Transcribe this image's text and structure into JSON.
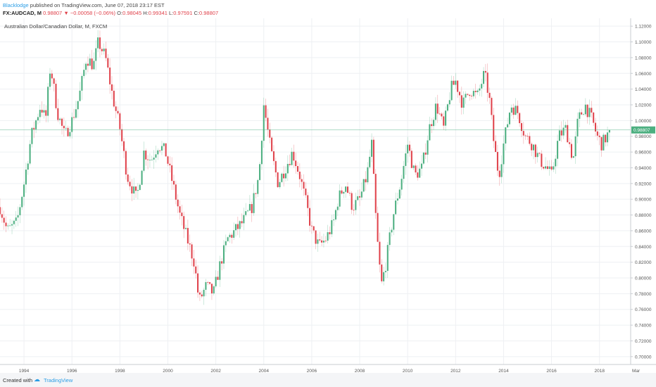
{
  "header": {
    "author": "Blacklodge",
    "published": "published on TradingView.com, June 07, 2018 23:17 EST",
    "symbol": "FX:AUDCAD, M",
    "last": "0.98807",
    "change": "−0.00058 (−0.06%)",
    "o_label": "O:",
    "o_value": "0.98045",
    "h_label": "H:",
    "h_value": "0.99341",
    "l_label": "L:",
    "l_value": "0.97591",
    "c_label": "C:",
    "c_value": "0.98807"
  },
  "footer": {
    "created_with": "Created with",
    "brand": "TradingView"
  },
  "colors": {
    "up": "#4caf80",
    "down": "#e0424b",
    "grid": "#eef0f3",
    "price_line": "#4caf80",
    "axis_text": "#555555"
  },
  "icons": {
    "change_arrow": "down-triangle-icon",
    "brand_logo": "tradingview-cloud-icon"
  },
  "chart_data": {
    "type": "candlestick",
    "title": "Australian Dollar/Canadian Dollar, M, FXCM",
    "ylim": [
      0.69,
      1.13
    ],
    "y_ticks": [
      "1.12000",
      "1.10000",
      "1.08000",
      "1.06000",
      "1.04000",
      "1.02000",
      "1.00000",
      "0.98000",
      "0.96000",
      "0.94000",
      "0.92000",
      "0.90000",
      "0.88000",
      "0.86000",
      "0.84000",
      "0.82000",
      "0.80000",
      "0.78000",
      "0.76000",
      "0.74000",
      "0.72000",
      "0.70000"
    ],
    "x_ticks": [
      "1994",
      "1996",
      "1998",
      "2000",
      "2002",
      "2004",
      "2006",
      "2008",
      "2010",
      "2012",
      "2014",
      "2016",
      "2018",
      "Mar"
    ],
    "x_range": [
      1993.0,
      2019.3
    ],
    "last_price": 0.98807,
    "last_price_label": "0.98807",
    "grid": true,
    "close_path": [
      [
        1993.0,
        0.89
      ],
      [
        1993.3,
        0.86
      ],
      [
        1993.7,
        0.87
      ],
      [
        1994.0,
        0.92
      ],
      [
        1994.3,
        0.98
      ],
      [
        1994.7,
        1.02
      ],
      [
        1994.9,
        1.0
      ],
      [
        1995.1,
        1.07
      ],
      [
        1995.4,
        1.01
      ],
      [
        1995.7,
        0.98
      ],
      [
        1996.0,
        1.0
      ],
      [
        1996.3,
        1.03
      ],
      [
        1996.6,
        1.08
      ],
      [
        1996.9,
        1.07
      ],
      [
        1997.1,
        1.1
      ],
      [
        1997.4,
        1.08
      ],
      [
        1997.7,
        1.03
      ],
      [
        1998.0,
        0.99
      ],
      [
        1998.3,
        0.93
      ],
      [
        1998.7,
        0.9
      ],
      [
        1999.0,
        0.96
      ],
      [
        1999.3,
        0.95
      ],
      [
        1999.6,
        0.97
      ],
      [
        1999.9,
        0.96
      ],
      [
        2000.2,
        0.92
      ],
      [
        2000.5,
        0.88
      ],
      [
        2000.8,
        0.85
      ],
      [
        2001.1,
        0.82
      ],
      [
        2001.3,
        0.77
      ],
      [
        2001.6,
        0.79
      ],
      [
        2001.9,
        0.78
      ],
      [
        2002.2,
        0.82
      ],
      [
        2002.5,
        0.85
      ],
      [
        2002.8,
        0.86
      ],
      [
        2003.1,
        0.87
      ],
      [
        2003.5,
        0.89
      ],
      [
        2003.8,
        0.93
      ],
      [
        2004.0,
        1.02
      ],
      [
        2004.3,
        0.96
      ],
      [
        2004.6,
        0.92
      ],
      [
        2004.9,
        0.94
      ],
      [
        2005.2,
        0.96
      ],
      [
        2005.5,
        0.93
      ],
      [
        2005.8,
        0.89
      ],
      [
        2006.0,
        0.86
      ],
      [
        2006.3,
        0.84
      ],
      [
        2006.6,
        0.85
      ],
      [
        2006.9,
        0.87
      ],
      [
        2007.1,
        0.9
      ],
      [
        2007.4,
        0.92
      ],
      [
        2007.7,
        0.89
      ],
      [
        2008.0,
        0.9
      ],
      [
        2008.3,
        0.93
      ],
      [
        2008.5,
        0.97
      ],
      [
        2008.7,
        0.86
      ],
      [
        2008.9,
        0.79
      ],
      [
        2009.1,
        0.82
      ],
      [
        2009.4,
        0.88
      ],
      [
        2009.7,
        0.92
      ],
      [
        2010.0,
        0.97
      ],
      [
        2010.3,
        0.93
      ],
      [
        2010.6,
        0.94
      ],
      [
        2010.9,
        0.99
      ],
      [
        2011.2,
        1.02
      ],
      [
        2011.5,
        0.99
      ],
      [
        2011.8,
        1.04
      ],
      [
        2012.0,
        1.05
      ],
      [
        2012.3,
        1.02
      ],
      [
        2012.6,
        1.04
      ],
      [
        2012.9,
        1.03
      ],
      [
        2013.2,
        1.06
      ],
      [
        2013.4,
        1.03
      ],
      [
        2013.6,
        0.97
      ],
      [
        2013.8,
        0.93
      ],
      [
        2014.0,
        0.97
      ],
      [
        2014.3,
        1.02
      ],
      [
        2014.6,
        1.01
      ],
      [
        2014.9,
        0.98
      ],
      [
        2015.2,
        0.97
      ],
      [
        2015.5,
        0.95
      ],
      [
        2015.8,
        0.94
      ],
      [
        2016.0,
        0.93
      ],
      [
        2016.3,
        0.98
      ],
      [
        2016.6,
        0.99
      ],
      [
        2016.9,
        0.95
      ],
      [
        2017.1,
        1.0
      ],
      [
        2017.4,
        1.02
      ],
      [
        2017.7,
        1.0
      ],
      [
        2017.9,
        0.98
      ],
      [
        2018.1,
        0.97
      ],
      [
        2018.3,
        0.98
      ],
      [
        2018.45,
        0.98807
      ]
    ]
  }
}
